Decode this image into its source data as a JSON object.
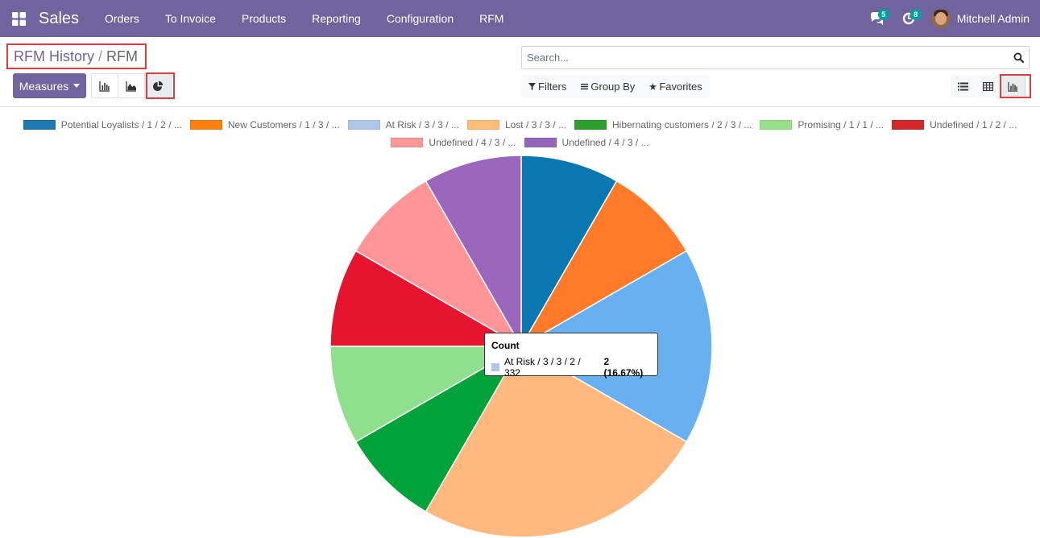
{
  "navbar": {
    "app_name": "Sales",
    "menu": [
      "Orders",
      "To Invoice",
      "Products",
      "Reporting",
      "Configuration",
      "RFM"
    ],
    "messages_count": "5",
    "activities_count": "8",
    "user_name": "Mitchell Admin"
  },
  "breadcrumb": {
    "parent": "RFM History",
    "separator": "/",
    "current": "RFM"
  },
  "toolbar": {
    "measures_label": "Measures"
  },
  "search": {
    "placeholder": "Search..."
  },
  "filters": {
    "filters_label": "Filters",
    "groupby_label": "Group By",
    "favorites_label": "Favorites"
  },
  "colors": {
    "brand": "#71639e",
    "highlight": "#e03e3e"
  },
  "chart_data": {
    "type": "pie",
    "measure": "Count",
    "slices": [
      {
        "label": "Potential Loyalists / 1 / 2 / ...",
        "value": 1,
        "color": "#1f77b4"
      },
      {
        "label": "New Customers / 1 / 3 / ...",
        "value": 1,
        "color": "#ff7f0e"
      },
      {
        "label": "At Risk / 3 / 3 / ...",
        "value": 2,
        "color": "#aec7e8"
      },
      {
        "label": "Lost / 3 / 3 / ...",
        "value": 3,
        "color": "#ffbb78"
      },
      {
        "label": "Hibernating customers / 2 / 3 / ...",
        "value": 1,
        "color": "#2ca02c"
      },
      {
        "label": "Promising / 1 / 1 / ...",
        "value": 1,
        "color": "#98df8a"
      },
      {
        "label": "Undefined / 1 / 2 / ...",
        "value": 1,
        "color": "#d62728"
      },
      {
        "label": "Undefined / 4 / 3 / ...",
        "value": 1,
        "color": "#ff9896"
      },
      {
        "label": "Undefined / 4 / 3 / ...",
        "value": 1,
        "color": "#9467bd"
      }
    ],
    "slice_fill_colors": [
      "#0a77b0",
      "#ff7b2a",
      "#68b0f0",
      "#ffb87e",
      "#00a23a",
      "#8ee08d",
      "#e6142e",
      "#ff9597",
      "#9a67bd"
    ],
    "legend_rows": [
      [
        0,
        1,
        2,
        3,
        4,
        5,
        6
      ],
      [
        7,
        8
      ]
    ]
  },
  "tooltip": {
    "title": "Count",
    "label": "At Risk / 3 / 3 / 2 / 332",
    "value": "2 (16.67%)",
    "swatch_color": "#aec7e8"
  }
}
